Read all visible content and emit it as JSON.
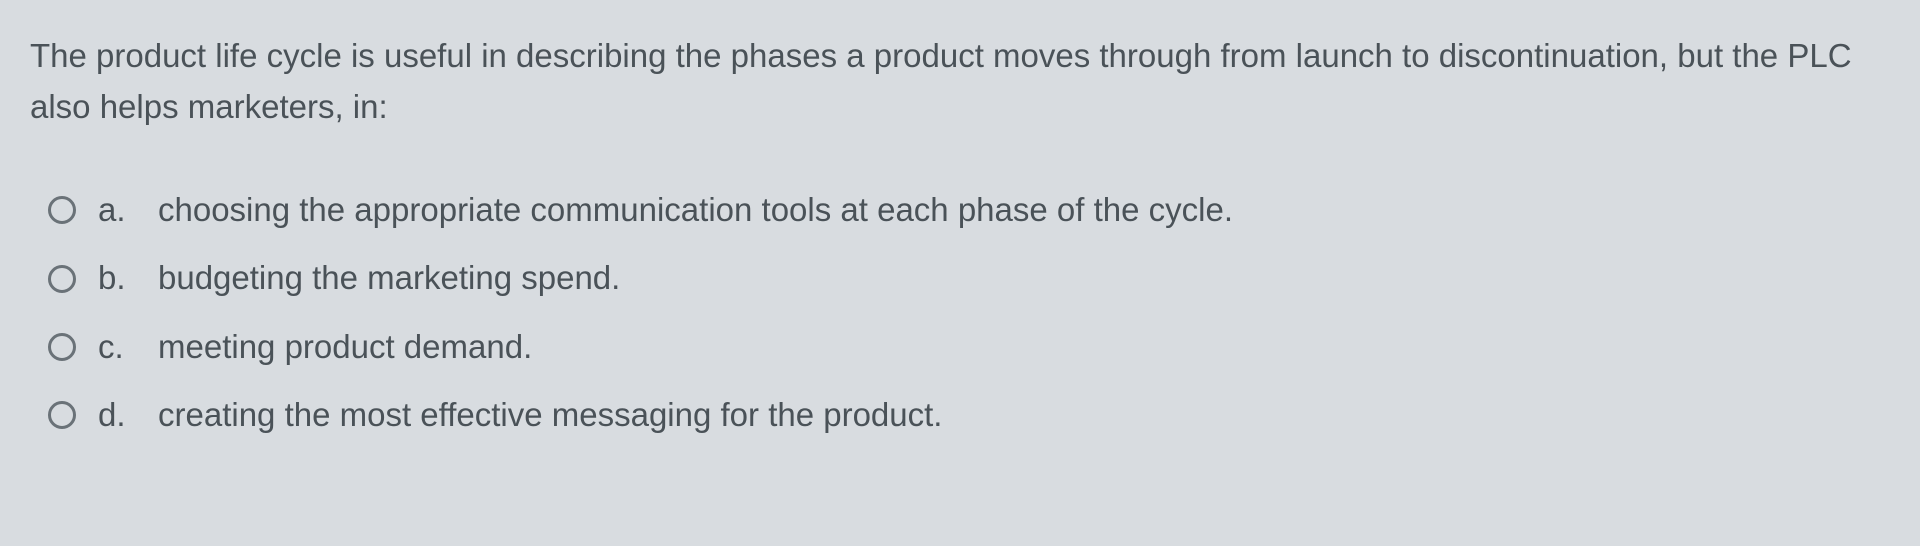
{
  "question": {
    "text": "The product life cycle is useful in describing the phases a product moves through from launch to discontinuation, but the PLC also helps marketers, in:"
  },
  "options": [
    {
      "letter": "a.",
      "text": "choosing the appropriate communication tools at each phase of the cycle.",
      "selected": false
    },
    {
      "letter": "b.",
      "text": "budgeting the marketing spend.",
      "selected": false
    },
    {
      "letter": "c.",
      "text": "meeting product demand.",
      "selected": false
    },
    {
      "letter": "d.",
      "text": "creating the most effective messaging for the product.",
      "selected": false
    }
  ],
  "colors": {
    "background": "#d8dce0",
    "text": "#4a5258",
    "radio_border": "#6a7278"
  },
  "typography": {
    "font_family": "Arial, Helvetica, sans-serif",
    "question_fontsize": 33,
    "option_fontsize": 33
  }
}
